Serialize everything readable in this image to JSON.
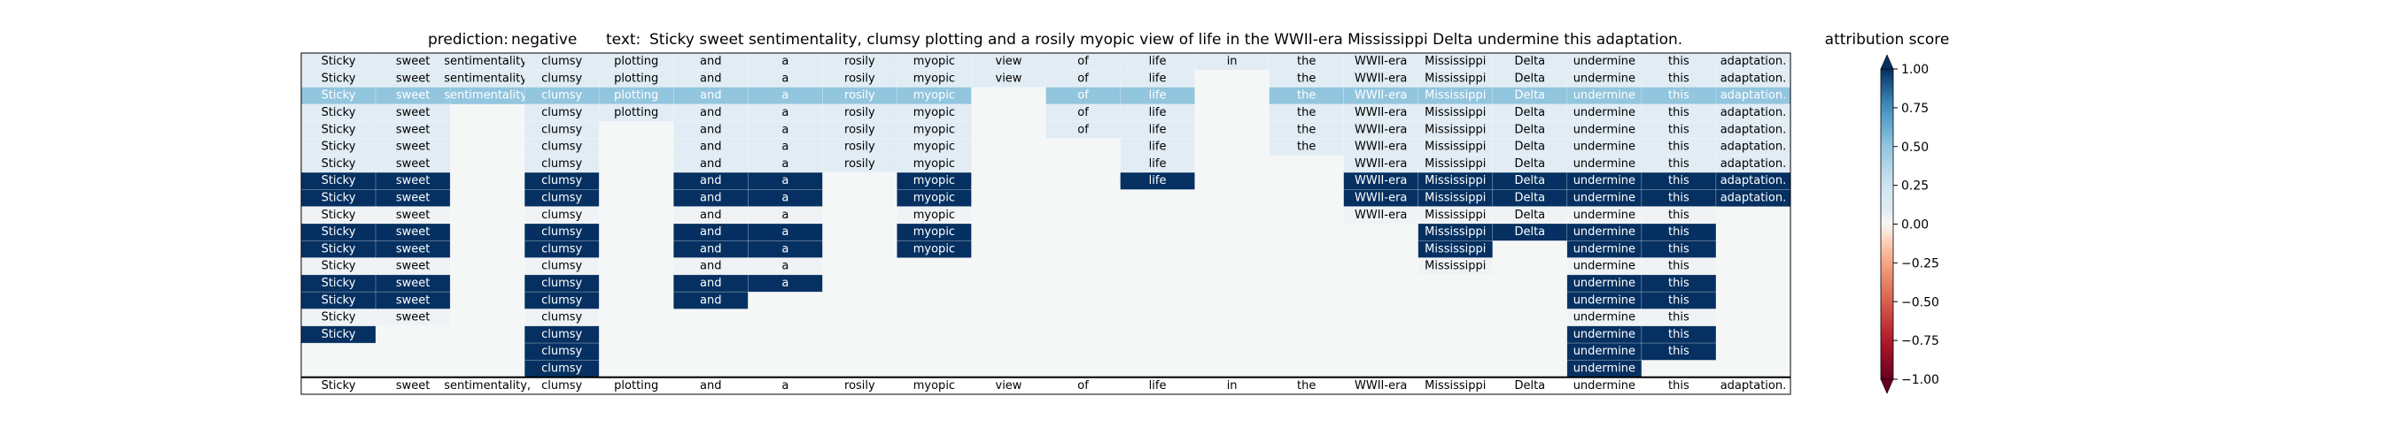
{
  "chart_data": {
    "type": "heatmap",
    "title_prefix": "prediction:",
    "prediction": "negative",
    "text_prefix": "text:",
    "text": "Sticky sweet sentimentality, clumsy plotting and a rosily myopic view of life in the WWII-era Mississippi Delta undermine this adaptation.",
    "tokens": [
      "Sticky",
      "sweet",
      "sentimentality,",
      "clumsy",
      "plotting",
      "and",
      "a",
      "rosily",
      "myopic",
      "view",
      "of",
      "life",
      "in",
      "the",
      "WWII-era",
      "Mississippi",
      "Delta",
      "undermine",
      "this",
      "adaptation."
    ],
    "rows": [
      {
        "tokens": [
          0,
          1,
          2,
          3,
          4,
          5,
          6,
          7,
          8,
          9,
          10,
          11,
          12,
          13,
          14,
          15,
          16,
          17,
          18,
          19
        ],
        "scores": [
          0.08,
          0.08,
          0.08,
          0.08,
          0.08,
          0.08,
          0.08,
          0.08,
          0.08,
          0.08,
          0.08,
          0.08,
          0.08,
          0.08,
          0.08,
          0.08,
          0.08,
          0.08,
          0.08,
          0.08
        ]
      },
      {
        "tokens": [
          0,
          1,
          2,
          3,
          4,
          5,
          6,
          7,
          8,
          9,
          10,
          11,
          13,
          14,
          15,
          16,
          17,
          18,
          19
        ],
        "scores": [
          0.08,
          0.08,
          0.08,
          0.08,
          0.08,
          0.08,
          0.08,
          0.08,
          0.08,
          0.08,
          0.08,
          0.08,
          0.08,
          0.08,
          0.08,
          0.08,
          0.08,
          0.08,
          0.08
        ]
      },
      {
        "tokens": [
          0,
          1,
          2,
          3,
          4,
          5,
          6,
          7,
          8,
          10,
          11,
          13,
          14,
          15,
          16,
          17,
          18,
          19
        ],
        "scores": [
          0.5,
          0.5,
          0.5,
          0.5,
          0.5,
          0.5,
          0.5,
          0.5,
          0.5,
          0.5,
          0.5,
          0.5,
          0.5,
          0.5,
          0.5,
          0.5,
          0.5,
          0.5
        ]
      },
      {
        "tokens": [
          0,
          1,
          3,
          4,
          5,
          6,
          7,
          8,
          10,
          11,
          13,
          14,
          15,
          16,
          17,
          18,
          19
        ],
        "scores": [
          0.08,
          0.08,
          0.08,
          0.08,
          0.08,
          0.08,
          0.08,
          0.08,
          0.08,
          0.08,
          0.08,
          0.08,
          0.08,
          0.08,
          0.08,
          0.08,
          0.08
        ]
      },
      {
        "tokens": [
          0,
          1,
          3,
          5,
          6,
          7,
          8,
          10,
          11,
          13,
          14,
          15,
          16,
          17,
          18,
          19
        ],
        "scores": [
          0.08,
          0.08,
          0.08,
          0.08,
          0.08,
          0.08,
          0.08,
          0.08,
          0.08,
          0.08,
          0.08,
          0.08,
          0.08,
          0.08,
          0.08,
          0.08
        ]
      },
      {
        "tokens": [
          0,
          1,
          3,
          5,
          6,
          7,
          8,
          11,
          13,
          14,
          15,
          16,
          17,
          18,
          19
        ],
        "scores": [
          0.08,
          0.08,
          0.08,
          0.08,
          0.08,
          0.08,
          0.08,
          0.08,
          0.08,
          0.08,
          0.08,
          0.08,
          0.08,
          0.08,
          0.08
        ]
      },
      {
        "tokens": [
          0,
          1,
          3,
          5,
          6,
          7,
          8,
          11,
          14,
          15,
          16,
          17,
          18,
          19
        ],
        "scores": [
          0.08,
          0.08,
          0.08,
          0.08,
          0.08,
          0.08,
          0.08,
          0.08,
          0.08,
          0.08,
          0.08,
          0.08,
          0.08,
          0.08
        ]
      },
      {
        "tokens": [
          0,
          1,
          3,
          5,
          6,
          8,
          11,
          14,
          15,
          16,
          17,
          18,
          19
        ],
        "scores": [
          1,
          1,
          1,
          1,
          1,
          1,
          1,
          1,
          1,
          1,
          1,
          1,
          1
        ]
      },
      {
        "tokens": [
          0,
          1,
          3,
          5,
          6,
          8,
          14,
          15,
          16,
          17,
          18,
          19
        ],
        "scores": [
          1,
          1,
          1,
          1,
          1,
          1,
          1,
          1,
          1,
          1,
          1,
          1
        ]
      },
      {
        "tokens": [
          0,
          1,
          3,
          5,
          6,
          8,
          14,
          15,
          16,
          17,
          18
        ],
        "scores": [
          0.03,
          0.03,
          0.03,
          0.03,
          0.03,
          0.03,
          0.03,
          0.03,
          0.03,
          0.03,
          0.03
        ]
      },
      {
        "tokens": [
          0,
          1,
          3,
          5,
          6,
          8,
          15,
          16,
          17,
          18
        ],
        "scores": [
          1,
          1,
          1,
          1,
          1,
          1,
          1,
          1,
          1,
          1
        ]
      },
      {
        "tokens": [
          0,
          1,
          3,
          5,
          6,
          8,
          15,
          17,
          18
        ],
        "scores": [
          1,
          1,
          1,
          1,
          1,
          1,
          1,
          1,
          1
        ]
      },
      {
        "tokens": [
          0,
          1,
          3,
          5,
          6,
          15,
          17,
          18
        ],
        "scores": [
          0.03,
          0.03,
          0.03,
          0.03,
          0.03,
          0.03,
          0.03,
          0.03
        ]
      },
      {
        "tokens": [
          0,
          1,
          3,
          5,
          6,
          17,
          18
        ],
        "scores": [
          1,
          1,
          1,
          1,
          1,
          1,
          1
        ]
      },
      {
        "tokens": [
          0,
          1,
          3,
          5,
          17,
          18
        ],
        "scores": [
          1,
          1,
          1,
          1,
          1,
          1
        ]
      },
      {
        "tokens": [
          0,
          1,
          3,
          17,
          18
        ],
        "scores": [
          0.03,
          0.03,
          0.03,
          0.03,
          0.03
        ]
      },
      {
        "tokens": [
          0,
          3,
          17,
          18
        ],
        "scores": [
          1,
          1,
          1,
          1
        ]
      },
      {
        "tokens": [
          3,
          17,
          18
        ],
        "scores": [
          1,
          1,
          1
        ]
      },
      {
        "tokens": [
          3,
          17
        ],
        "scores": [
          1,
          1
        ]
      }
    ],
    "colorbar": {
      "label": "attribution score",
      "range": [
        -1,
        1
      ],
      "ticks": [
        1.0,
        0.75,
        0.5,
        0.25,
        0.0,
        -0.25,
        -0.5,
        -0.75,
        -1.0
      ],
      "tick_labels": [
        "1.00",
        "0.75",
        "0.50",
        "0.25",
        "0.00",
        "−0.25",
        "−0.50",
        "−0.75",
        "−1.00"
      ],
      "colormap": "RdBu",
      "extend": "both"
    }
  }
}
